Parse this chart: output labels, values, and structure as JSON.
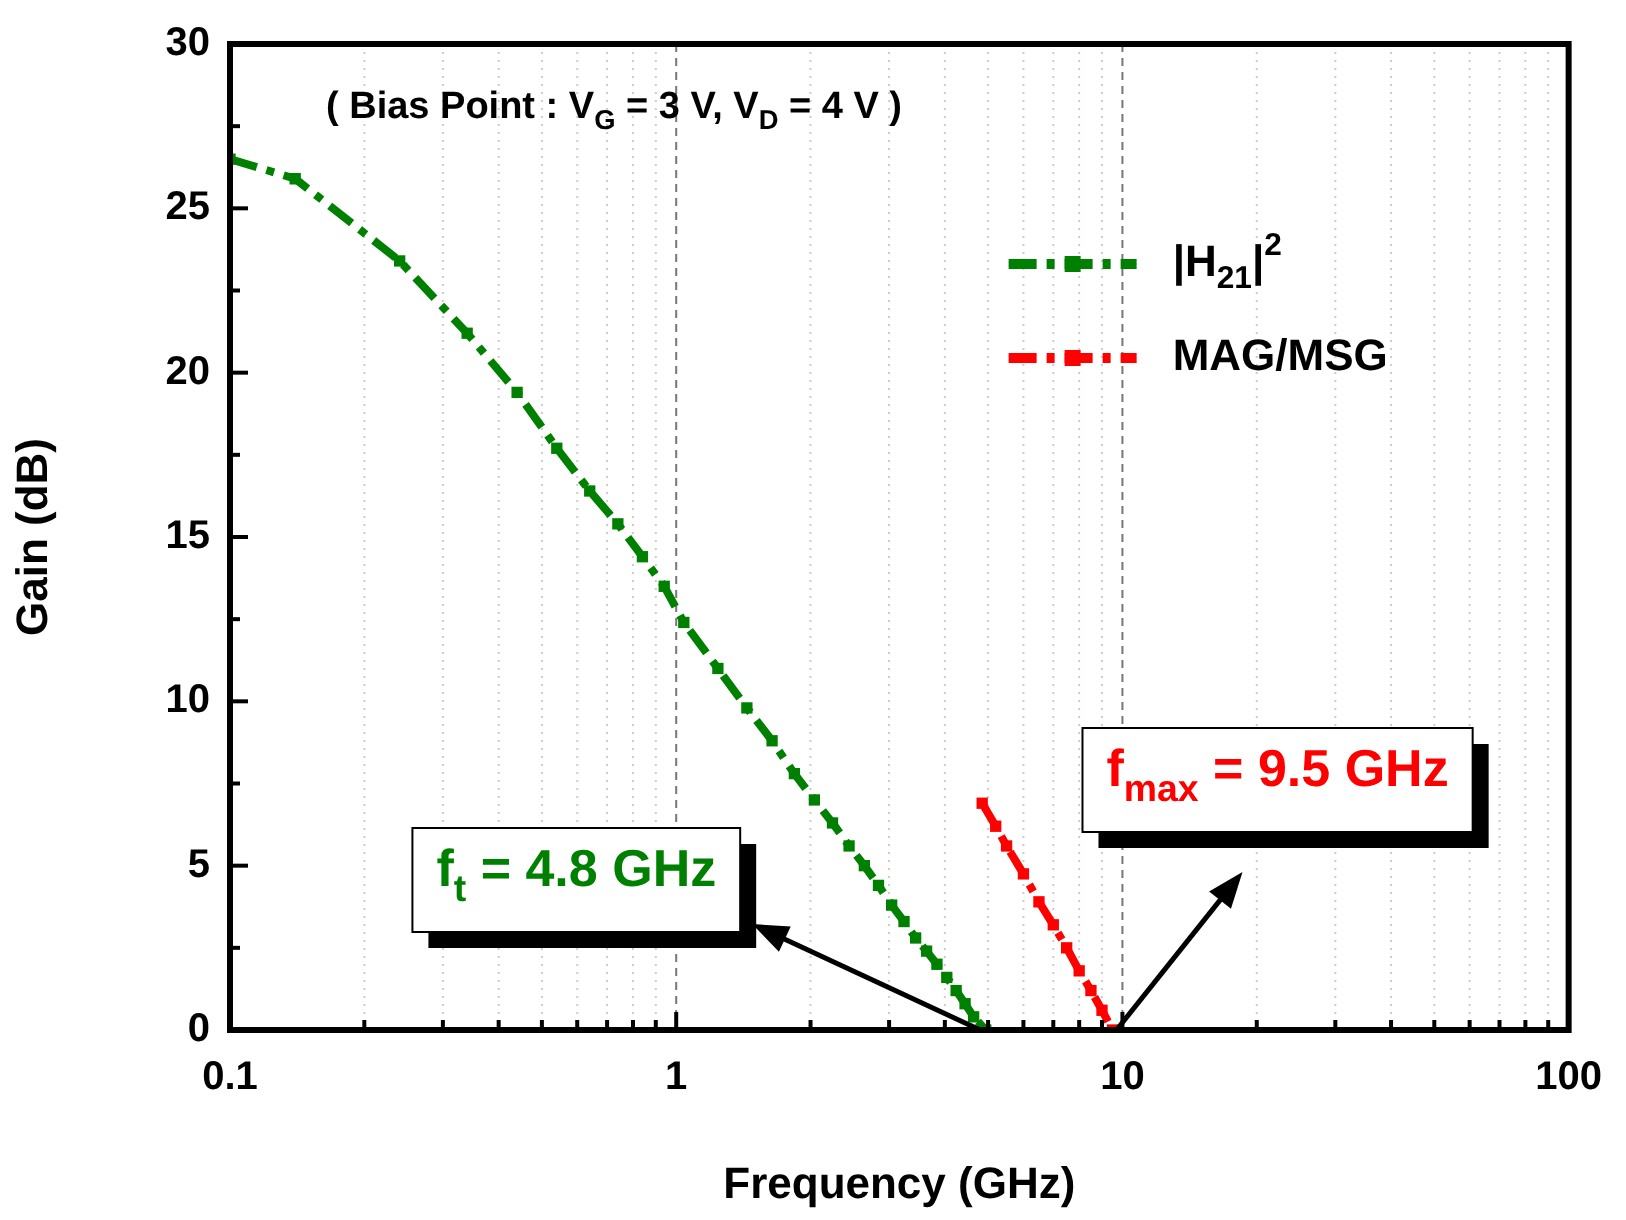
{
  "chart_data": {
    "type": "line",
    "xlabel": "Frequency (GHz)",
    "ylabel": "Gain (dB)",
    "log": "x",
    "grid": "x",
    "legend": "top right",
    "marker": "square",
    "line_style": "dashed",
    "xlim": [
      0.1,
      100
    ],
    "xticks": [
      0.1,
      {
        "value": 0.2,
        "label": null
      },
      {
        "value": 0.3,
        "label": null
      },
      {
        "value": 0.4,
        "label": null
      },
      {
        "value": 0.5,
        "label": null
      },
      {
        "value": 0.6,
        "label": null
      },
      {
        "value": 0.7,
        "label": null
      },
      {
        "value": 0.8,
        "label": null
      },
      {
        "value": 0.9,
        "label": null
      },
      1,
      {
        "value": 2,
        "label": null
      },
      {
        "value": 3,
        "label": null
      },
      {
        "value": 4,
        "label": null
      },
      {
        "value": 5,
        "label": null
      },
      {
        "value": 6,
        "label": null
      },
      {
        "value": 7,
        "label": null
      },
      {
        "value": 8,
        "label": null
      },
      {
        "value": 9,
        "label": null
      },
      10,
      {
        "value": 20,
        "label": null
      },
      {
        "value": 30,
        "label": null
      },
      {
        "value": 40,
        "label": null
      },
      {
        "value": 50,
        "label": null
      },
      {
        "value": 60,
        "label": null
      },
      {
        "value": 70,
        "label": null
      },
      {
        "value": 80,
        "label": null
      },
      {
        "value": 90,
        "label": null
      },
      100
    ],
    "ylim": [
      0,
      30
    ],
    "yticks": [
      0,
      {
        "value": 2.5,
        "label": null
      },
      5,
      {
        "value": 7.5,
        "label": null
      },
      10,
      {
        "value": 12.5,
        "label": null
      },
      15,
      {
        "value": 17.5,
        "label": null
      },
      20,
      {
        "value": 22.5,
        "label": null
      },
      25,
      {
        "value": 27.5,
        "label": null
      },
      30
    ],
    "series": [
      {
        "name": "|H$_{21}$|$^{2}$",
        "color": "#008000",
        "x": [
          0.1,
          0.14,
          0.24,
          0.34,
          0.44,
          0.54,
          0.64,
          0.74,
          0.84,
          0.94,
          1.04,
          1.24,
          1.44,
          1.64,
          1.84,
          2.04,
          2.24,
          2.44,
          2.64,
          2.84,
          3.04,
          3.24,
          3.44,
          3.64,
          3.84,
          4.04,
          4.24,
          4.44,
          4.64,
          4.94
        ],
        "values": [
          26.5,
          25.9,
          23.4,
          21.2,
          19.4,
          17.7,
          16.4,
          15.4,
          14.4,
          13.5,
          12.4,
          11.0,
          9.8,
          8.8,
          7.8,
          7.0,
          6.3,
          5.6,
          5.0,
          4.4,
          3.8,
          3.3,
          2.8,
          2.4,
          2.0,
          1.6,
          1.2,
          0.8,
          0.4,
          0
        ]
      },
      {
        "name": "MAG/MSG",
        "color": "#ff0000",
        "x": [
          4.85,
          5.2,
          5.5,
          6,
          6.5,
          7,
          7.5,
          8,
          8.5,
          9,
          9.5
        ],
        "values": [
          6.9,
          6.2,
          5.6,
          4.75,
          3.9,
          3.2,
          2.5,
          1.8,
          1.2,
          0.6,
          0
        ]
      }
    ],
    "annotations": [
      "( Bias Point : V$_{G}$ = 3 V, V$_{D}$ = 4 V )",
      {
        "text": "f$_{t}$ = 4.8 GHz",
        "x": 4.8,
        "y": 0
      },
      "f$_{max}$ = 9.5 GHz"
    ]
  }
}
